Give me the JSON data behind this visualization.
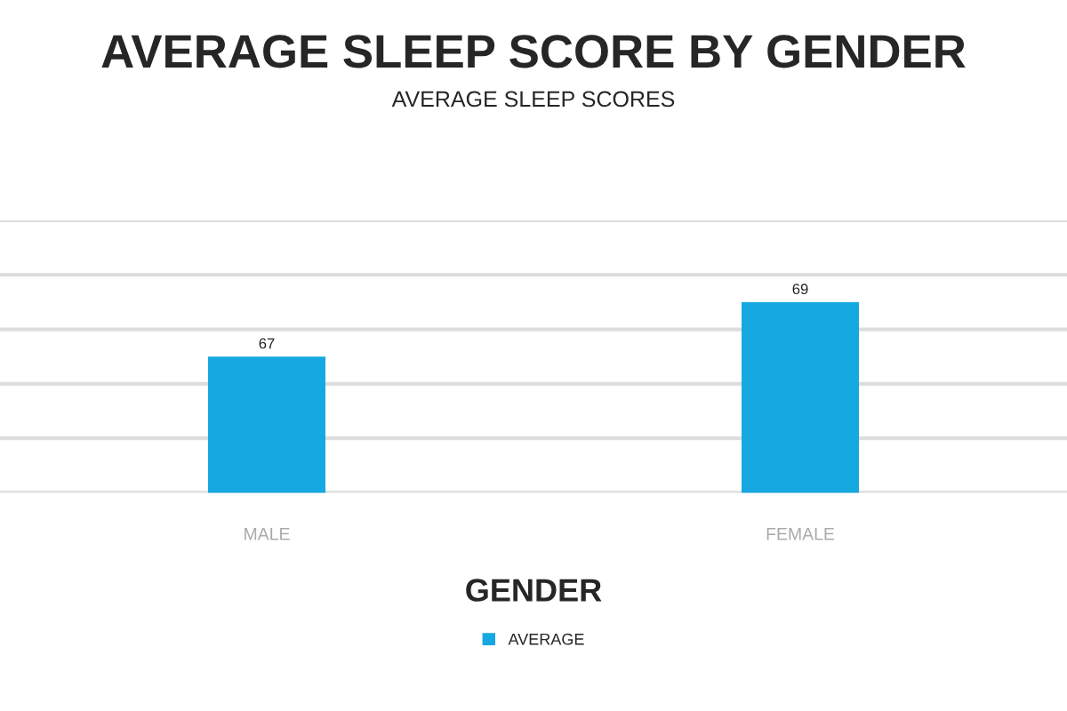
{
  "chart_data": {
    "type": "bar",
    "title": "AVERAGE SLEEP SCORE BY GENDER",
    "subtitle": "AVERAGE SLEEP SCORES",
    "xlabel": "GENDER",
    "categories": [
      "MALE",
      "FEMALE"
    ],
    "series": [
      {
        "name": "AVERAGE",
        "color": "#16a8e0",
        "values": [
          67,
          69
        ]
      }
    ],
    "ylim": [
      62,
      72
    ],
    "yticks": [
      {
        "value": 62,
        "label": null
      },
      {
        "value": 64,
        "label": null
      },
      {
        "value": 66,
        "label": null
      },
      {
        "value": 68,
        "label": null
      },
      {
        "value": 70,
        "label": null
      },
      {
        "value": 72,
        "label": null
      }
    ],
    "grid": "y",
    "legend": "bottom",
    "data_labels": true,
    "tick_labels": "x"
  }
}
